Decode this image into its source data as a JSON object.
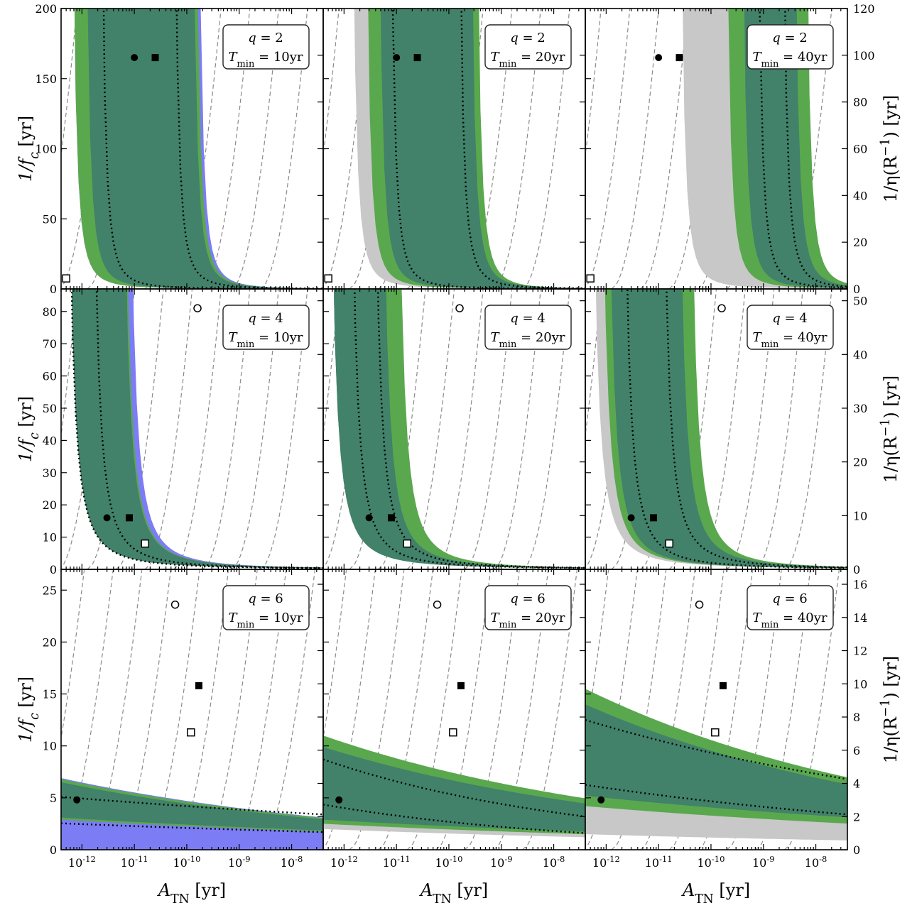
{
  "chart_data": {
    "type": "area",
    "layout": "3x3 grid of panels; rows share q, columns share T_min",
    "xlabel": "A_TN [yr]",
    "xscale": "log",
    "xlim": [
      4e-13,
      4e-08
    ],
    "xticks": [
      "10^-12",
      "10^-11",
      "10^-10",
      "10^-9",
      "10^-8"
    ],
    "ylabel_left": "1/f_c [yr]",
    "ylabel_right": "1/η(R^-1) [yr]",
    "bands": {
      "colors": {
        "green": "#5aa84e",
        "teal": "#3b7474",
        "blue": "#7c7cf4",
        "grey": "#c8c8c8"
      }
    },
    "rows": [
      {
        "q": "2",
        "ylim": [
          0,
          200
        ],
        "left_ticks": [
          0,
          50,
          100,
          150,
          200
        ],
        "right_ticks": [
          0,
          20,
          40,
          60,
          80,
          100,
          120
        ],
        "right_max": 120,
        "panels": [
          {
            "T_min": "10yr",
            "asymptotes": {
              "green_outer": [
                5e-13,
                1.15e-10
              ],
              "teal": [
                9e-13,
                1e-10
              ],
              "dotted": [
                1.8e-12,
                4.5e-11
              ],
              "blue_edge": 1.3e-10
            },
            "markers": {
              "filled_circle": [
                1e-11,
                165
              ],
              "filled_square": [
                2.5e-11,
                165
              ],
              "open_square": [
                5e-13,
                7.5
              ]
            }
          },
          {
            "T_min": "20yr",
            "asymptotes": {
              "grey": [
                1.1e-12,
                1.8e-10
              ],
              "green_outer": [
                2e-12,
                2.6e-10
              ],
              "teal": [
                3.5e-12,
                2e-10
              ],
              "dotted": [
                6e-12,
                1.2e-10
              ]
            },
            "markers": {
              "filled_circle": [
                1e-11,
                165
              ],
              "filled_square": [
                2.5e-11,
                165
              ],
              "open_square": [
                5e-13,
                7.5
              ]
            }
          },
          {
            "T_min": "40yr",
            "asymptotes": {
              "grey": [
                2e-11,
                6e-10
              ],
              "green_outer": [
                1.5e-10,
                5e-09
              ],
              "teal": [
                3e-10,
                3e-09
              ],
              "dotted": [
                6e-10,
                1.8e-09
              ]
            },
            "markers": {
              "filled_circle": [
                1e-11,
                165
              ],
              "filled_square": [
                2.5e-11,
                165
              ],
              "open_square": [
                5e-13,
                7.5
              ]
            }
          }
        ]
      },
      {
        "q": "4",
        "ylim": [
          0,
          87
        ],
        "left_ticks": [
          0,
          10,
          20,
          30,
          40,
          50,
          60,
          70,
          80
        ],
        "right_ticks": [
          0,
          10,
          20,
          30,
          40,
          50
        ],
        "right_max": 52.2,
        "panels": [
          {
            "T_min": "10yr",
            "asymptotes": {
              "green_outer": [
                4e-13,
                4.8e-12
              ],
              "teal": [
                4e-13,
                4.5e-12
              ],
              "dotted": [
                4e-13,
                1.2e-12
              ],
              "blue_edge": 6e-12
            },
            "markers": {
              "filled_circle": [
                3e-12,
                16
              ],
              "filled_square": [
                8e-12,
                16
              ],
              "open_square": [
                1.6e-11,
                8
              ],
              "open_circle": [
                1.6e-10,
                81
              ]
            }
          },
          {
            "T_min": "20yr",
            "asymptotes": {
              "grey": [
                4e-13,
                4e-12
              ],
              "green_outer": [
                4e-13,
                8e-12
              ],
              "teal": [
                4e-13,
                4e-12
              ],
              "dotted": [
                1e-12,
                2.8e-12
              ]
            },
            "markers": {
              "filled_circle": [
                3e-12,
                16
              ],
              "filled_square": [
                8e-12,
                16
              ],
              "open_square": [
                1.6e-11,
                8
              ],
              "open_circle": [
                1.6e-10,
                81
              ]
            }
          },
          {
            "T_min": "40yr",
            "asymptotes": {
              "grey": [
                4e-13,
                1.5e-11
              ],
              "green_outer": [
                6e-13,
                3e-11
              ],
              "teal": [
                8e-13,
                1.8e-11
              ],
              "dotted": [
                1.6e-12,
                9e-12
              ]
            },
            "markers": {
              "filled_circle": [
                3e-12,
                16
              ],
              "filled_square": [
                8e-12,
                16
              ],
              "open_square": [
                1.6e-11,
                8
              ],
              "open_circle": [
                1.6e-10,
                81
              ]
            }
          }
        ]
      },
      {
        "q": "6",
        "ylim": [
          0,
          27
        ],
        "left_ticks": [
          0,
          5,
          10,
          15,
          20,
          25
        ],
        "right_ticks": [
          0,
          2,
          4,
          6,
          8,
          10,
          12,
          14,
          16
        ],
        "right_max": 16.9,
        "panels": [
          {
            "T_min": "10yr",
            "asymptotes": {
              "green_outer": [
                6.8,
                2.9
              ],
              "teal": [
                6.5,
                3.1
              ],
              "dotted": [
                5.1,
                3.4
              ],
              "blue_edge": 6.9
            },
            "markers": {
              "filled_circle": [
                8e-13,
                4.8
              ],
              "filled_square": [
                1.7e-10,
                15.8
              ],
              "open_square": [
                1.2e-10,
                11.3
              ],
              "open_circle": [
                6e-11,
                23.6
              ]
            }
          },
          {
            "T_min": "20yr",
            "asymptotes": {
              "grey": [
                7.8,
                2.0
              ],
              "green_outer": [
                11.0,
                2.5
              ],
              "teal": [
                9.9,
                2.9
              ],
              "dotted": [
                8.7,
                3.2
              ]
            },
            "markers": {
              "filled_circle": [
                8e-13,
                4.8
              ],
              "filled_square": [
                1.7e-10,
                15.8
              ],
              "open_square": [
                1.2e-10,
                11.3
              ],
              "open_circle": [
                6e-11,
                23.6
              ]
            }
          },
          {
            "T_min": "40yr",
            "asymptotes": {
              "grey": [
                6.5,
                1.5
              ],
              "green_outer": [
                15.5,
                4.2
              ],
              "teal": [
                14.0,
                5.2
              ],
              "dotted": [
                12.5,
                6.8
              ]
            },
            "markers": {
              "filled_circle": [
                8e-13,
                4.8
              ],
              "filled_square": [
                1.7e-10,
                15.8
              ],
              "open_square": [
                1.2e-10,
                11.3
              ],
              "open_circle": [
                6e-11,
                23.6
              ]
            }
          }
        ]
      }
    ]
  },
  "labels": {
    "q_prefix": "q = ",
    "tmin_prefix": "T",
    "tmin_sub": "min",
    "xlabel_main": "A",
    "xlabel_sub": "TN",
    "xlabel_unit": "[yr]",
    "ylabel_left_main": "1/f",
    "ylabel_left_sub": "c",
    "ylabel_left_unit": "[yr]",
    "ylabel_right_main": "1/η(R",
    "ylabel_right_sup": "−1",
    "ylabel_right_close": ")",
    "ylabel_right_unit": "[yr]"
  }
}
